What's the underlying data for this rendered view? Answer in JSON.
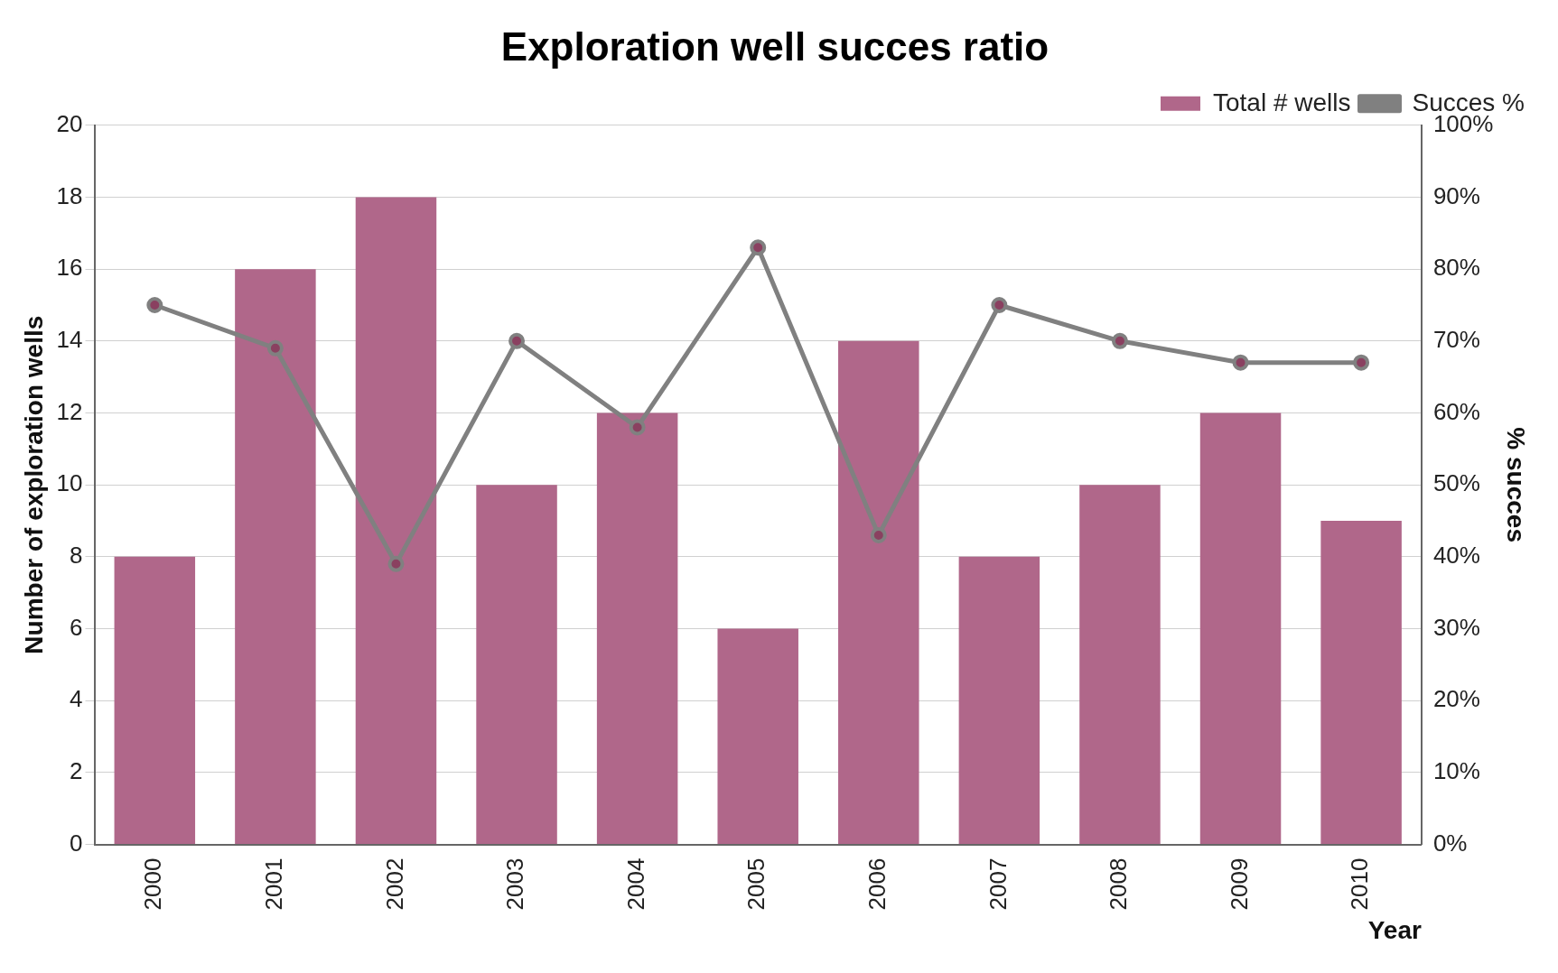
{
  "chart_data": {
    "type": "bar",
    "title": "Exploration well succes ratio",
    "xlabel": "Year",
    "ylabel": "Number of exploration wells",
    "y2label": "% succes",
    "categories": [
      "2000",
      "2001",
      "2002",
      "2003",
      "2004",
      "2005",
      "2006",
      "2007",
      "2008",
      "2009",
      "2010"
    ],
    "series": [
      {
        "name": "Total # wells",
        "color": "#b0678a",
        "values": [
          8,
          16,
          18,
          10,
          12,
          6,
          14,
          8,
          10,
          12,
          9
        ]
      },
      {
        "name": "Succes %",
        "type": "line",
        "axis": "y2",
        "color": "#808080",
        "values": [
          75,
          69,
          39,
          70,
          58,
          83,
          43,
          75,
          70,
          67,
          67
        ]
      }
    ],
    "ylim": [
      0,
      20
    ],
    "yticks": [
      0,
      2,
      4,
      6,
      8,
      10,
      12,
      14,
      16,
      18,
      20
    ],
    "y2lim": [
      0,
      100
    ],
    "y2ticks": [
      {
        "value": 0,
        "label": "0%"
      },
      {
        "value": 10,
        "label": "10%"
      },
      {
        "value": 20,
        "label": "20%"
      },
      {
        "value": 30,
        "label": "30%"
      },
      {
        "value": 40,
        "label": "40%"
      },
      {
        "value": 50,
        "label": "50%"
      },
      {
        "value": 60,
        "label": "60%"
      },
      {
        "value": 70,
        "label": "70%"
      },
      {
        "value": 80,
        "label": "80%"
      },
      {
        "value": 90,
        "label": "90%"
      },
      {
        "value": 100,
        "label": "100%"
      }
    ],
    "grid": "y",
    "legend": "top right",
    "marker": "circle",
    "line_style": "solid"
  }
}
